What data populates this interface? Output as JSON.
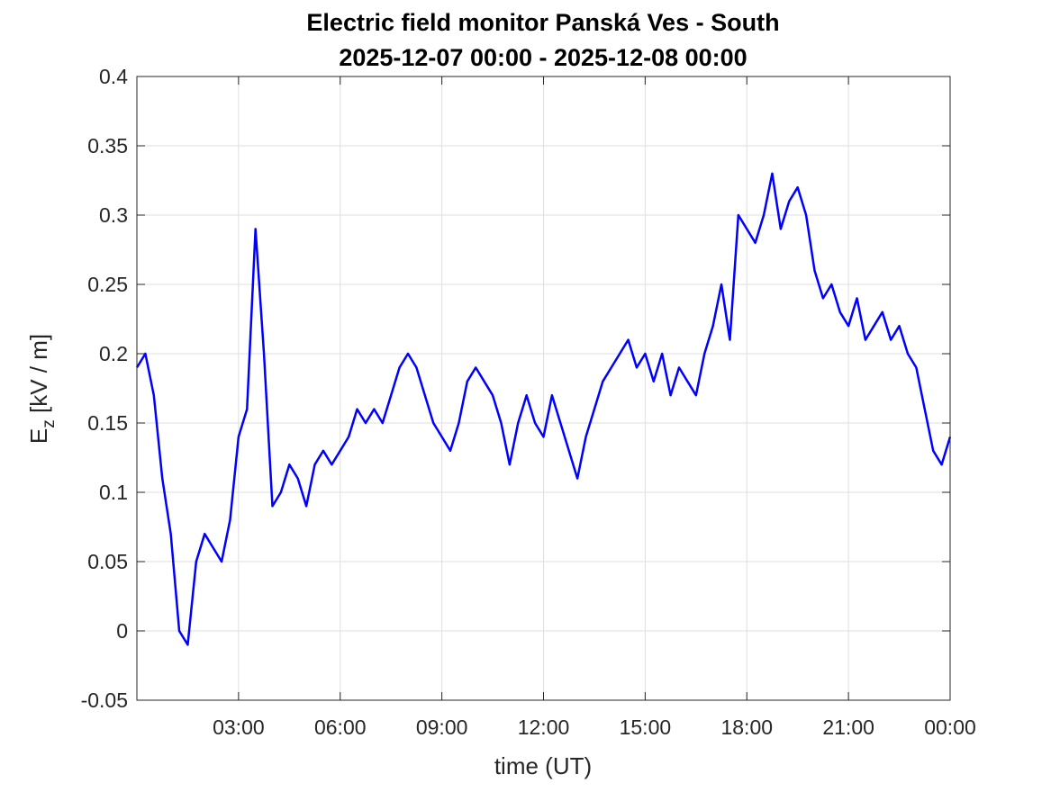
{
  "chart_data": {
    "type": "line",
    "title": [
      "Electric field monitor Panská Ves - South",
      "2025-12-07 00:00 - 2025-12-08 00:00"
    ],
    "xlabel": "time (UT)",
    "ylabel": [
      "E",
      "z",
      " [kV / m]"
    ],
    "xlim": [
      0,
      24
    ],
    "xticks": [
      {
        "value": 3,
        "label": "03:00"
      },
      {
        "value": 6,
        "label": "06:00"
      },
      {
        "value": 9,
        "label": "09:00"
      },
      {
        "value": 12,
        "label": "12:00"
      },
      {
        "value": 15,
        "label": "15:00"
      },
      {
        "value": 18,
        "label": "18:00"
      },
      {
        "value": 21,
        "label": "21:00"
      },
      {
        "value": 24,
        "label": "00:00"
      }
    ],
    "ylim": [
      -0.05,
      0.4
    ],
    "yticks": [
      -0.05,
      0,
      0.05,
      0.1,
      0.15,
      0.2,
      0.25,
      0.3,
      0.35,
      0.4
    ],
    "grid": true,
    "x": [
      0,
      0.25,
      0.5,
      0.75,
      1,
      1.25,
      1.5,
      1.75,
      2,
      2.25,
      2.5,
      2.75,
      3,
      3.25,
      3.5,
      3.75,
      4,
      4.25,
      4.5,
      4.75,
      5,
      5.25,
      5.5,
      5.75,
      6,
      6.25,
      6.5,
      6.75,
      7,
      7.25,
      7.5,
      7.75,
      8,
      8.25,
      8.5,
      8.75,
      9,
      9.25,
      9.5,
      9.75,
      10,
      10.25,
      10.5,
      10.75,
      11,
      11.25,
      11.5,
      11.75,
      12,
      12.25,
      12.5,
      12.75,
      13,
      13.25,
      13.5,
      13.75,
      14,
      14.25,
      14.5,
      14.75,
      15,
      15.25,
      15.5,
      15.75,
      16,
      16.25,
      16.5,
      16.75,
      17,
      17.25,
      17.5,
      17.75,
      18,
      18.25,
      18.5,
      18.75,
      19,
      19.25,
      19.5,
      19.75,
      20,
      20.25,
      20.5,
      20.75,
      21,
      21.25,
      21.5,
      21.75,
      22,
      22.25,
      22.5,
      22.75,
      23,
      23.25,
      23.5,
      23.75,
      24
    ],
    "series": [
      {
        "name": "Ez",
        "color": "#0000ff",
        "values": [
          0.19,
          0.2,
          0.17,
          0.11,
          0.07,
          0.0,
          -0.01,
          0.05,
          0.07,
          0.06,
          0.05,
          0.08,
          0.14,
          0.16,
          0.29,
          0.2,
          0.09,
          0.1,
          0.12,
          0.11,
          0.09,
          0.12,
          0.13,
          0.12,
          0.13,
          0.14,
          0.16,
          0.15,
          0.16,
          0.15,
          0.17,
          0.19,
          0.2,
          0.19,
          0.17,
          0.15,
          0.14,
          0.13,
          0.15,
          0.18,
          0.19,
          0.18,
          0.17,
          0.15,
          0.12,
          0.15,
          0.17,
          0.15,
          0.14,
          0.17,
          0.15,
          0.13,
          0.11,
          0.14,
          0.16,
          0.18,
          0.19,
          0.2,
          0.21,
          0.19,
          0.2,
          0.18,
          0.2,
          0.17,
          0.19,
          0.18,
          0.17,
          0.2,
          0.22,
          0.25,
          0.21,
          0.3,
          0.29,
          0.28,
          0.3,
          0.33,
          0.29,
          0.31,
          0.32,
          0.3,
          0.26,
          0.24,
          0.25,
          0.23,
          0.22,
          0.24,
          0.21,
          0.22,
          0.23,
          0.21,
          0.22,
          0.2,
          0.19,
          0.16,
          0.13,
          0.12,
          0.14
        ]
      }
    ]
  }
}
